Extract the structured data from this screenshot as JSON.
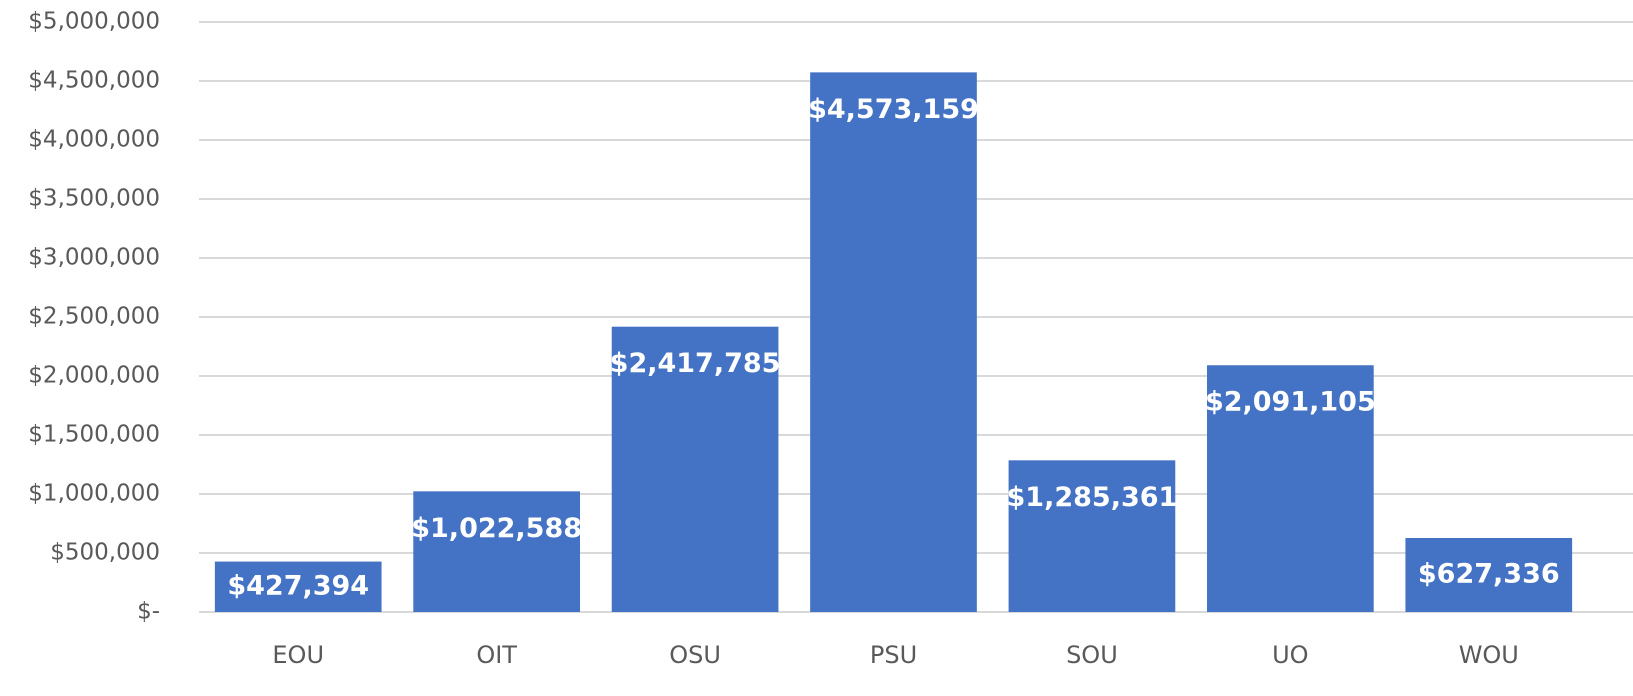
{
  "chart_data": {
    "type": "bar",
    "categories": [
      "EOU",
      "OIT",
      "OSU",
      "PSU",
      "SOU",
      "UO",
      "WOU"
    ],
    "values": [
      427394,
      1022588,
      2417785,
      4573159,
      1285361,
      2091105,
      627336
    ],
    "value_labels": [
      "$427,394",
      "$1,022,588",
      "$2,417,785",
      "$4,573,159",
      "$1,285,361",
      "$2,091,105",
      "$627,336"
    ],
    "color": "#4472c4",
    "ylim": [
      0,
      5000000
    ],
    "yticks": [
      {
        "value": 0,
        "label": "$-"
      },
      {
        "value": 500000,
        "label": "$500,000"
      },
      {
        "value": 1000000,
        "label": "$1,000,000"
      },
      {
        "value": 1500000,
        "label": "$1,500,000"
      },
      {
        "value": 2000000,
        "label": "$2,000,000"
      },
      {
        "value": 2500000,
        "label": "$2,500,000"
      },
      {
        "value": 3000000,
        "label": "$3,000,000"
      },
      {
        "value": 3500000,
        "label": "$3,500,000"
      },
      {
        "value": 4000000,
        "label": "$4,000,000"
      },
      {
        "value": 4500000,
        "label": "$4,500,000"
      },
      {
        "value": 5000000,
        "label": "$5,000,000"
      }
    ],
    "grid": true
  }
}
